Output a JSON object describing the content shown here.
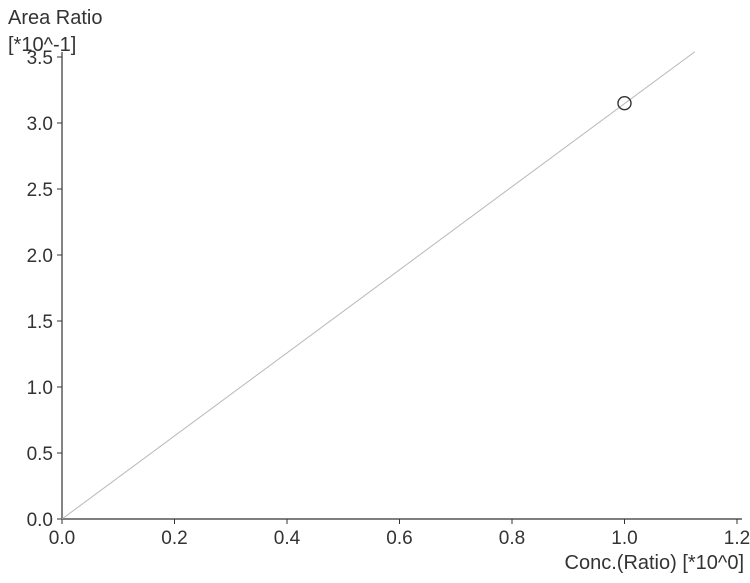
{
  "chart_data": {
    "type": "scatter",
    "ylabel": "Area Ratio",
    "ylabel_multiplier": "[*10^-1]",
    "xlabel": "Conc.(Ratio) [*10^0]",
    "x_ticks": [
      0.0,
      0.2,
      0.4,
      0.6,
      0.8,
      1.0,
      1.2
    ],
    "x_tick_labels": [
      "0.0",
      "0.2",
      "0.4",
      "0.6",
      "0.8",
      "1.0",
      "1.2"
    ],
    "y_ticks": [
      0.0,
      0.5,
      1.0,
      1.5,
      2.0,
      2.5,
      3.0,
      3.5
    ],
    "y_tick_labels": [
      "0.0",
      "0.5",
      "1.0",
      "1.5",
      "2.0",
      "2.5",
      "3.0",
      "3.5"
    ],
    "xlim": [
      0.0,
      1.2
    ],
    "ylim": [
      0.0,
      3.5
    ],
    "grid": false,
    "points": [
      {
        "x": 1.0,
        "y": 3.15
      }
    ],
    "fit_line": [
      {
        "x": 0.0,
        "y": 0.0
      },
      {
        "x": 1.125,
        "y": 3.54
      }
    ],
    "colors": {
      "axis": "#333333",
      "fit_line": "#b8b8b8",
      "marker": "#333333",
      "background": "#ffffff"
    }
  }
}
